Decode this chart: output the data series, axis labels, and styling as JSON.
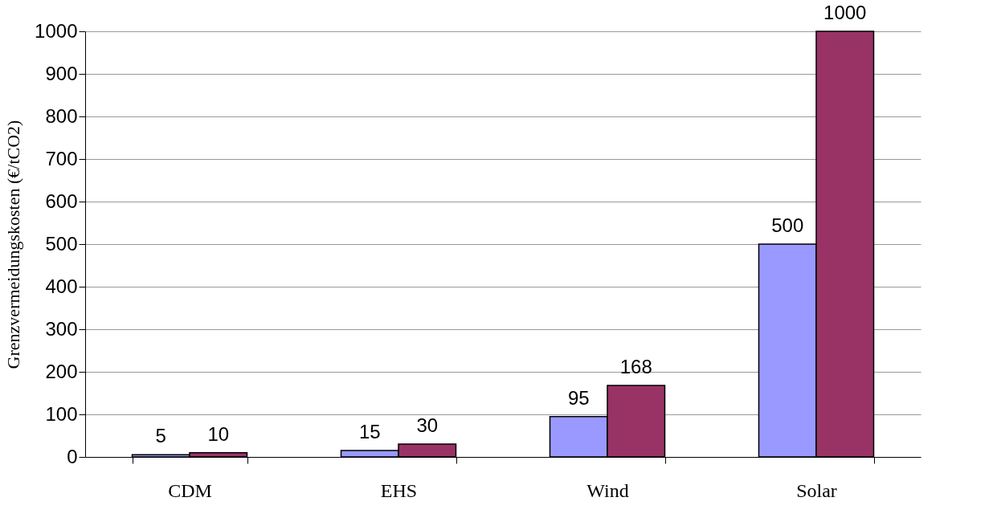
{
  "chart_data": {
    "type": "bar",
    "ylabel": "Grenzvermeidungskosten  (€/tCO2)",
    "categories": [
      "CDM",
      "EHS",
      "Wind",
      "Solar"
    ],
    "series": [
      {
        "color": "#9999ff",
        "values": [
          5,
          15,
          95,
          500
        ]
      },
      {
        "color": "#993366",
        "values": [
          10,
          30,
          168,
          1000
        ]
      }
    ],
    "ylim": [
      0,
      1000
    ],
    "yticks": [
      0,
      100,
      200,
      300,
      400,
      500,
      600,
      700,
      800,
      900,
      1000
    ],
    "grid": "y",
    "data_labels": true
  }
}
